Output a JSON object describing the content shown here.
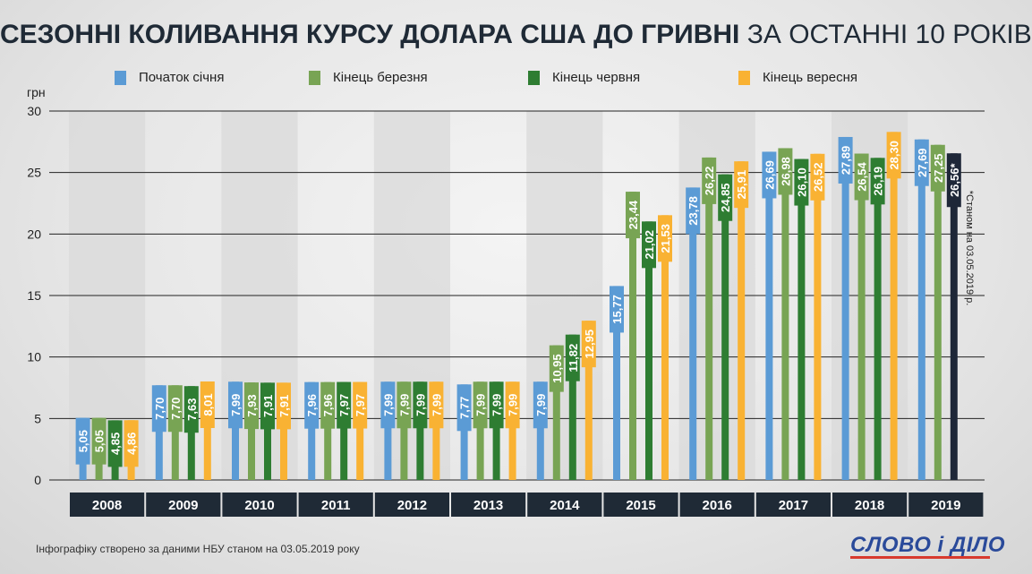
{
  "title": {
    "bold": "СЕЗОННІ КОЛИВАННЯ КУРСУ ДОЛАРА США ДО ГРИВНІ",
    "regular": "ЗА ОСТАННІ 10 РОКІВ"
  },
  "footnote": "Інфографіку створено за даними НБУ станом на 03.05.2019 року",
  "logo": "СЛОВО і ДІЛО",
  "chart_data": {
    "type": "bar",
    "ylabel": "грн",
    "ylim": [
      0,
      30
    ],
    "yticks": [
      0,
      5,
      10,
      15,
      20,
      25,
      30
    ],
    "grid": true,
    "legend_position": "top",
    "categories": [
      "2008",
      "2009",
      "2010",
      "2011",
      "2012",
      "2013",
      "2014",
      "2015",
      "2016",
      "2017",
      "2018",
      "2019"
    ],
    "series": [
      {
        "name": "Початок січня",
        "color": "#5b9bd5",
        "values": [
          5.05,
          7.7,
          7.99,
          7.96,
          7.99,
          7.77,
          7.99,
          15.77,
          23.78,
          26.69,
          27.89,
          27.69
        ],
        "labels": [
          "5,05",
          "7,70",
          "7,99",
          "7,96",
          "7,99",
          "7,77",
          "7,99",
          "15,77",
          "23,78",
          "26,69",
          "27,89",
          "27,69"
        ]
      },
      {
        "name": "Кінець березня",
        "color": "#78a454",
        "values": [
          5.05,
          7.7,
          7.93,
          7.96,
          7.99,
          7.99,
          10.95,
          23.44,
          26.22,
          26.98,
          26.54,
          27.25
        ],
        "labels": [
          "5,05",
          "7,70",
          "7,93",
          "7,96",
          "7,99",
          "7,99",
          "10,95",
          "23,44",
          "26,22",
          "26,98",
          "26,54",
          "27,25"
        ]
      },
      {
        "name": "Кінець червня",
        "color": "#2e7d32",
        "values": [
          4.85,
          7.63,
          7.91,
          7.97,
          7.99,
          7.99,
          11.82,
          21.02,
          24.85,
          26.1,
          26.19,
          26.56
        ],
        "labels": [
          "4,85",
          "7,63",
          "7,91",
          "7,97",
          "7,99",
          "7,99",
          "11,82",
          "21,02",
          "24,85",
          "26,10",
          "26,19",
          "26,56*"
        ]
      },
      {
        "name": "Кінець вересня",
        "color": "#f9b233",
        "values": [
          4.86,
          8.01,
          7.91,
          7.97,
          7.99,
          7.99,
          12.95,
          21.53,
          25.91,
          26.52,
          28.3,
          null
        ],
        "labels": [
          "4,86",
          "8,01",
          "7,91",
          "7,97",
          "7,99",
          "7,99",
          "12,95",
          "21,53",
          "25,91",
          "26,52",
          "28,30",
          ""
        ]
      }
    ],
    "special_bar_color": "#1e2738",
    "annotation": "*Станом на 03.05.2019 р."
  }
}
